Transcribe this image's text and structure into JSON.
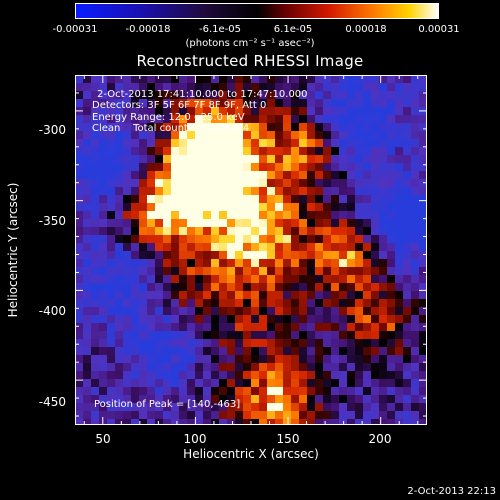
{
  "colorbar": {
    "ticks": [
      "-0.00031",
      "-0.00018",
      "-6.1e-05",
      "6.1e-05",
      "0.00018",
      "0.00031"
    ],
    "units": "(photons cm⁻² s⁻¹ asec⁻²)"
  },
  "title": "Reconstructed RHESSI Image",
  "info": {
    "time_range": "2-Oct-2013 17:41:10.000 to 17:47:10.000",
    "detectors": "Detectors: 3F 5F 6F 7F 8F 9F, Att 0",
    "energy_range": "Energy Range: 12.0 - 25.0 keV",
    "method_counts": "Clean    Total counts: 1.31E+04",
    "peak": "Position of Peak = [140,-463]"
  },
  "axes": {
    "xlabel": "Heliocentric X (arcsec)",
    "ylabel": "Heliocentric Y (arcsec)",
    "xticks": [
      50,
      100,
      150,
      200
    ],
    "yticks": [
      -300,
      -350,
      -400,
      -450
    ],
    "xlim": [
      35,
      225
    ],
    "ylim": [
      -475,
      -280
    ]
  },
  "image": {
    "hot_spots": [
      {
        "x": 110,
        "y": -315,
        "level": 0.95
      },
      {
        "x": 113,
        "y": -332,
        "level": 0.9
      },
      {
        "x": 182,
        "y": -380,
        "level": 0.95
      },
      {
        "x": 100,
        "y": -340,
        "level": 0.85
      },
      {
        "x": 160,
        "y": -320,
        "level": 0.8
      },
      {
        "x": 145,
        "y": -462,
        "level": 1.0
      },
      {
        "x": 78,
        "y": -355,
        "level": 0.75
      },
      {
        "x": 200,
        "y": -418,
        "level": 0.7
      },
      {
        "x": 135,
        "y": -365,
        "level": 0.7
      }
    ],
    "cold_spots": [
      {
        "x": 185,
        "y": -305
      },
      {
        "x": 85,
        "y": -435
      },
      {
        "x": 55,
        "y": -330
      },
      {
        "x": 210,
        "y": -360
      },
      {
        "x": 60,
        "y": -395
      }
    ]
  },
  "timestamp": "2-Oct-2013 22:13"
}
